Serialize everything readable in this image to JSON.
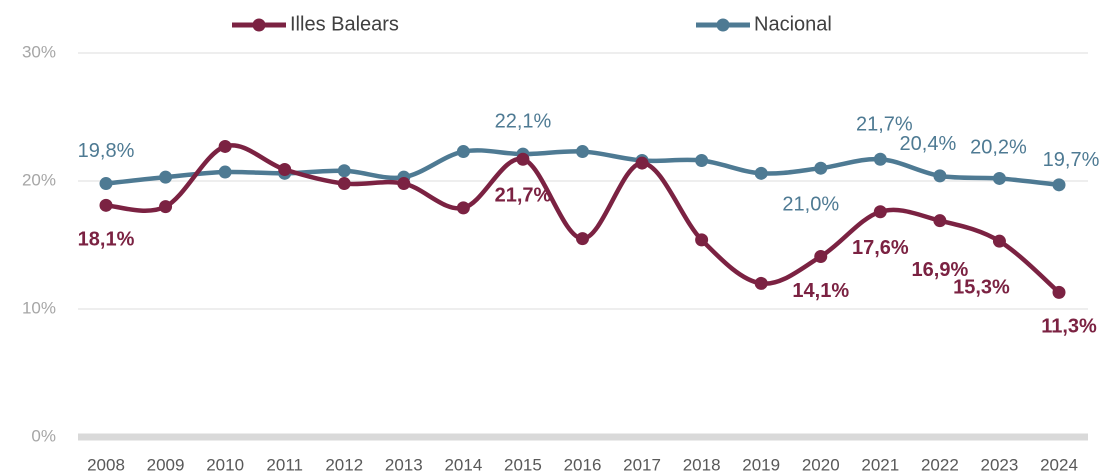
{
  "chart_data": {
    "type": "line",
    "categories": [
      "2008",
      "2009",
      "2010",
      "2011",
      "2012",
      "2013",
      "2014",
      "2015",
      "2016",
      "2017",
      "2018",
      "2019",
      "2020",
      "2021",
      "2022",
      "2023",
      "2024"
    ],
    "series": [
      {
        "name": "Illes Balears",
        "color": "#7b2242",
        "values": [
          18.1,
          18.0,
          22.7,
          20.9,
          19.8,
          19.8,
          17.9,
          21.7,
          15.5,
          21.4,
          15.4,
          12.0,
          14.1,
          17.6,
          16.9,
          15.3,
          11.3
        ],
        "value_labels": [
          "18,1%",
          null,
          null,
          null,
          null,
          null,
          null,
          "21,7%",
          null,
          null,
          null,
          null,
          "14,1%",
          "17,6%",
          "16,9%",
          "15,3%",
          "11,3%"
        ]
      },
      {
        "name": "Nacional",
        "color": "#4e7a93",
        "values": [
          19.8,
          20.3,
          20.7,
          20.6,
          20.8,
          20.3,
          22.3,
          22.1,
          22.3,
          21.6,
          21.6,
          20.6,
          21.0,
          21.7,
          20.4,
          20.2,
          19.7
        ],
        "value_labels": [
          "19,8%",
          null,
          null,
          null,
          null,
          null,
          null,
          "22,1%",
          null,
          null,
          null,
          null,
          "21,0%",
          "21,7%",
          "20,4%",
          "20,2%",
          "19,7%"
        ]
      }
    ],
    "ylim": [
      0,
      30
    ],
    "yticks": [
      {
        "value": 0,
        "label": "0%"
      },
      {
        "value": 10,
        "label": "10%"
      },
      {
        "value": 20,
        "label": "20%"
      },
      {
        "value": 30,
        "label": "30%"
      }
    ],
    "grid": true,
    "legend": "top"
  }
}
